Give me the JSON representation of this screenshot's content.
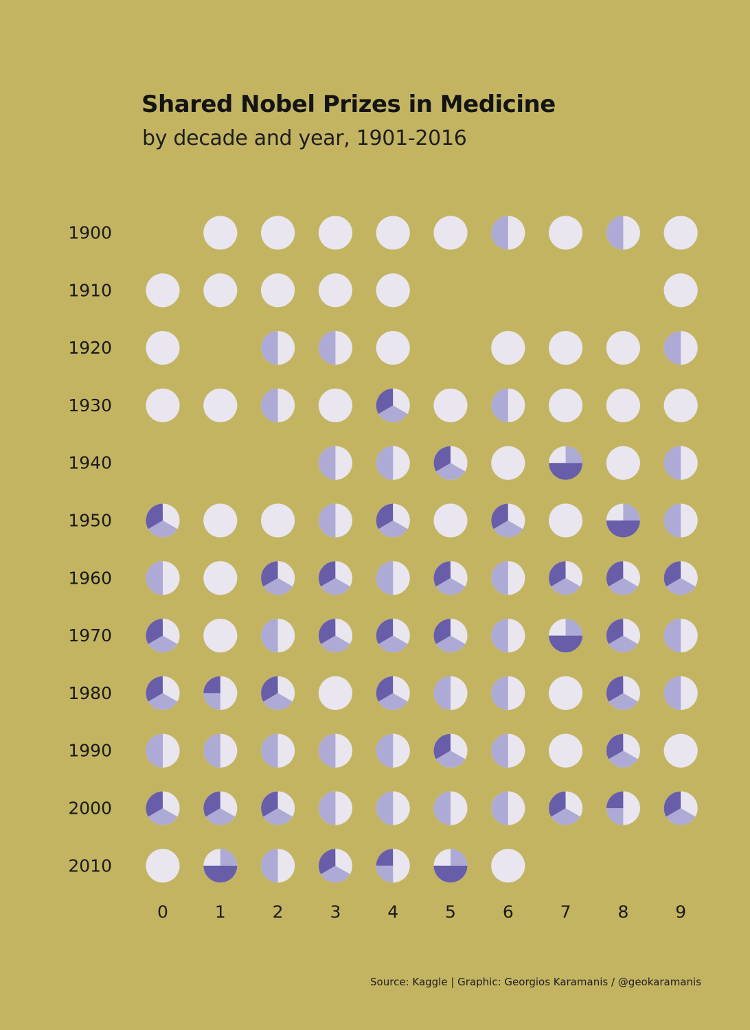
{
  "colors": {
    "background": "#C3B462",
    "one_laureate": "#E9E6EF",
    "two_laureates": "#AEAAD6",
    "three_or_more": "#675DA9"
  },
  "header": {
    "title": "Shared Nobel Prizes in Medicine",
    "subtitle": "by decade and year, 1901-2016"
  },
  "caption": "Source: Kaggle | Graphic: Georgios Karamanis / @geokaramanis",
  "chart_data": {
    "type": "pie",
    "title": "Shared Nobel Prizes in Medicine",
    "subtitle": "by decade and year, 1901-2016",
    "xlabel": "",
    "ylabel": "",
    "grid": false,
    "legend": false,
    "categories": [
      "0",
      "1",
      "2",
      "3",
      "4",
      "5",
      "6",
      "7",
      "8",
      "9"
    ],
    "decades": [
      "1900",
      "1910",
      "1920",
      "1930",
      "1940",
      "1950",
      "1960",
      "1970",
      "1980",
      "1990",
      "2000",
      "2010"
    ],
    "slice_order": [
      "one_laureate",
      "two_laureates",
      "three_or_more"
    ],
    "years": [
      {
        "decade": "1900",
        "digit": 1,
        "shares": [
          1
        ]
      },
      {
        "decade": "1900",
        "digit": 2,
        "shares": [
          1
        ]
      },
      {
        "decade": "1900",
        "digit": 3,
        "shares": [
          1
        ]
      },
      {
        "decade": "1900",
        "digit": 4,
        "shares": [
          1
        ]
      },
      {
        "decade": "1900",
        "digit": 5,
        "shares": [
          1
        ]
      },
      {
        "decade": "1900",
        "digit": 6,
        "shares": [
          0.5,
          0.5
        ]
      },
      {
        "decade": "1900",
        "digit": 7,
        "shares": [
          1
        ]
      },
      {
        "decade": "1900",
        "digit": 8,
        "shares": [
          0.5,
          0.5
        ]
      },
      {
        "decade": "1900",
        "digit": 9,
        "shares": [
          1
        ]
      },
      {
        "decade": "1910",
        "digit": 0,
        "shares": [
          1
        ]
      },
      {
        "decade": "1910",
        "digit": 1,
        "shares": [
          1
        ]
      },
      {
        "decade": "1910",
        "digit": 2,
        "shares": [
          1
        ]
      },
      {
        "decade": "1910",
        "digit": 3,
        "shares": [
          1
        ]
      },
      {
        "decade": "1910",
        "digit": 4,
        "shares": [
          1
        ]
      },
      {
        "decade": "1910",
        "digit": 9,
        "shares": [
          1
        ]
      },
      {
        "decade": "1920",
        "digit": 0,
        "shares": [
          1
        ]
      },
      {
        "decade": "1920",
        "digit": 2,
        "shares": [
          0.5,
          0.5
        ]
      },
      {
        "decade": "1920",
        "digit": 3,
        "shares": [
          0.5,
          0.5
        ]
      },
      {
        "decade": "1920",
        "digit": 4,
        "shares": [
          1
        ]
      },
      {
        "decade": "1920",
        "digit": 6,
        "shares": [
          1
        ]
      },
      {
        "decade": "1920",
        "digit": 7,
        "shares": [
          1
        ]
      },
      {
        "decade": "1920",
        "digit": 8,
        "shares": [
          1
        ]
      },
      {
        "decade": "1920",
        "digit": 9,
        "shares": [
          0.5,
          0.5
        ]
      },
      {
        "decade": "1930",
        "digit": 0,
        "shares": [
          1
        ]
      },
      {
        "decade": "1930",
        "digit": 1,
        "shares": [
          1
        ]
      },
      {
        "decade": "1930",
        "digit": 2,
        "shares": [
          0.5,
          0.5
        ]
      },
      {
        "decade": "1930",
        "digit": 3,
        "shares": [
          1
        ]
      },
      {
        "decade": "1930",
        "digit": 4,
        "shares": [
          0.333,
          0.333,
          0.333
        ]
      },
      {
        "decade": "1930",
        "digit": 5,
        "shares": [
          1
        ]
      },
      {
        "decade": "1930",
        "digit": 6,
        "shares": [
          0.5,
          0.5
        ]
      },
      {
        "decade": "1930",
        "digit": 7,
        "shares": [
          1
        ]
      },
      {
        "decade": "1930",
        "digit": 8,
        "shares": [
          1
        ]
      },
      {
        "decade": "1930",
        "digit": 9,
        "shares": [
          1
        ]
      },
      {
        "decade": "1940",
        "digit": 3,
        "shares": [
          0.5,
          0.5
        ]
      },
      {
        "decade": "1940",
        "digit": 4,
        "shares": [
          0.5,
          0.5
        ]
      },
      {
        "decade": "1940",
        "digit": 5,
        "shares": [
          0.333,
          0.333,
          0.333
        ]
      },
      {
        "decade": "1940",
        "digit": 6,
        "shares": [
          1
        ]
      },
      {
        "decade": "1940",
        "digit": 7,
        "shares": [
          0,
          0.25,
          0.5
        ]
      },
      {
        "decade": "1940",
        "digit": 8,
        "shares": [
          1
        ]
      },
      {
        "decade": "1940",
        "digit": 9,
        "shares": [
          0.5,
          0.5
        ]
      },
      {
        "decade": "1950",
        "digit": 0,
        "shares": [
          0.333,
          0.333,
          0.333
        ]
      },
      {
        "decade": "1950",
        "digit": 1,
        "shares": [
          1
        ]
      },
      {
        "decade": "1950",
        "digit": 2,
        "shares": [
          1
        ]
      },
      {
        "decade": "1950",
        "digit": 3,
        "shares": [
          0.5,
          0.5
        ]
      },
      {
        "decade": "1950",
        "digit": 4,
        "shares": [
          0.333,
          0.333,
          0.333
        ]
      },
      {
        "decade": "1950",
        "digit": 5,
        "shares": [
          1
        ]
      },
      {
        "decade": "1950",
        "digit": 6,
        "shares": [
          0.333,
          0.333,
          0.333
        ]
      },
      {
        "decade": "1950",
        "digit": 7,
        "shares": [
          1
        ]
      },
      {
        "decade": "1950",
        "digit": 8,
        "shares": [
          0,
          0.25,
          0.5
        ]
      },
      {
        "decade": "1950",
        "digit": 9,
        "shares": [
          0.5,
          0.5
        ]
      },
      {
        "decade": "1960",
        "digit": 0,
        "shares": [
          0.5,
          0.5
        ]
      },
      {
        "decade": "1960",
        "digit": 1,
        "shares": [
          1
        ]
      },
      {
        "decade": "1960",
        "digit": 2,
        "shares": [
          0.333,
          0.333,
          0.333
        ]
      },
      {
        "decade": "1960",
        "digit": 3,
        "shares": [
          0.333,
          0.333,
          0.333
        ]
      },
      {
        "decade": "1960",
        "digit": 4,
        "shares": [
          0.5,
          0.5
        ]
      },
      {
        "decade": "1960",
        "digit": 5,
        "shares": [
          0.333,
          0.333,
          0.333
        ]
      },
      {
        "decade": "1960",
        "digit": 6,
        "shares": [
          0.5,
          0.5
        ]
      },
      {
        "decade": "1960",
        "digit": 7,
        "shares": [
          0.333,
          0.333,
          0.333
        ]
      },
      {
        "decade": "1960",
        "digit": 8,
        "shares": [
          0.333,
          0.333,
          0.333
        ]
      },
      {
        "decade": "1960",
        "digit": 9,
        "shares": [
          0.333,
          0.333,
          0.333
        ]
      },
      {
        "decade": "1970",
        "digit": 0,
        "shares": [
          0.333,
          0.333,
          0.333
        ]
      },
      {
        "decade": "1970",
        "digit": 1,
        "shares": [
          1
        ]
      },
      {
        "decade": "1970",
        "digit": 2,
        "shares": [
          0.5,
          0.5
        ]
      },
      {
        "decade": "1970",
        "digit": 3,
        "shares": [
          0.333,
          0.333,
          0.333
        ]
      },
      {
        "decade": "1970",
        "digit": 4,
        "shares": [
          0.333,
          0.333,
          0.333
        ]
      },
      {
        "decade": "1970",
        "digit": 5,
        "shares": [
          0.333,
          0.333,
          0.333
        ]
      },
      {
        "decade": "1970",
        "digit": 6,
        "shares": [
          0.5,
          0.5
        ]
      },
      {
        "decade": "1970",
        "digit": 7,
        "shares": [
          0,
          0.25,
          0.5
        ]
      },
      {
        "decade": "1970",
        "digit": 8,
        "shares": [
          0.333,
          0.333,
          0.333
        ]
      },
      {
        "decade": "1970",
        "digit": 9,
        "shares": [
          0.5,
          0.5
        ]
      },
      {
        "decade": "1980",
        "digit": 0,
        "shares": [
          0.333,
          0.333,
          0.333
        ]
      },
      {
        "decade": "1980",
        "digit": 1,
        "shares": [
          0.5,
          0.25,
          0.25
        ]
      },
      {
        "decade": "1980",
        "digit": 2,
        "shares": [
          0.333,
          0.333,
          0.333
        ]
      },
      {
        "decade": "1980",
        "digit": 3,
        "shares": [
          1
        ]
      },
      {
        "decade": "1980",
        "digit": 4,
        "shares": [
          0.333,
          0.333,
          0.333
        ]
      },
      {
        "decade": "1980",
        "digit": 5,
        "shares": [
          0.5,
          0.5
        ]
      },
      {
        "decade": "1980",
        "digit": 6,
        "shares": [
          0.5,
          0.5
        ]
      },
      {
        "decade": "1980",
        "digit": 7,
        "shares": [
          1
        ]
      },
      {
        "decade": "1980",
        "digit": 8,
        "shares": [
          0.333,
          0.333,
          0.333
        ]
      },
      {
        "decade": "1980",
        "digit": 9,
        "shares": [
          0.5,
          0.5
        ]
      },
      {
        "decade": "1990",
        "digit": 0,
        "shares": [
          0.5,
          0.5
        ]
      },
      {
        "decade": "1990",
        "digit": 1,
        "shares": [
          0.5,
          0.5
        ]
      },
      {
        "decade": "1990",
        "digit": 2,
        "shares": [
          0.5,
          0.5
        ]
      },
      {
        "decade": "1990",
        "digit": 3,
        "shares": [
          0.5,
          0.5
        ]
      },
      {
        "decade": "1990",
        "digit": 4,
        "shares": [
          0.5,
          0.5
        ]
      },
      {
        "decade": "1990",
        "digit": 5,
        "shares": [
          0.333,
          0.333,
          0.333
        ]
      },
      {
        "decade": "1990",
        "digit": 6,
        "shares": [
          0.5,
          0.5
        ]
      },
      {
        "decade": "1990",
        "digit": 7,
        "shares": [
          1
        ]
      },
      {
        "decade": "1990",
        "digit": 8,
        "shares": [
          0.333,
          0.333,
          0.333
        ]
      },
      {
        "decade": "1990",
        "digit": 9,
        "shares": [
          1
        ]
      },
      {
        "decade": "2000",
        "digit": 0,
        "shares": [
          0.333,
          0.333,
          0.333
        ]
      },
      {
        "decade": "2000",
        "digit": 1,
        "shares": [
          0.333,
          0.333,
          0.333
        ]
      },
      {
        "decade": "2000",
        "digit": 2,
        "shares": [
          0.333,
          0.333,
          0.333
        ]
      },
      {
        "decade": "2000",
        "digit": 3,
        "shares": [
          0.5,
          0.5
        ]
      },
      {
        "decade": "2000",
        "digit": 4,
        "shares": [
          0.5,
          0.5
        ]
      },
      {
        "decade": "2000",
        "digit": 5,
        "shares": [
          0.5,
          0.5
        ]
      },
      {
        "decade": "2000",
        "digit": 6,
        "shares": [
          0.5,
          0.5
        ]
      },
      {
        "decade": "2000",
        "digit": 7,
        "shares": [
          0.333,
          0.333,
          0.333
        ]
      },
      {
        "decade": "2000",
        "digit": 8,
        "shares": [
          0.5,
          0.25,
          0.25
        ]
      },
      {
        "decade": "2000",
        "digit": 9,
        "shares": [
          0.333,
          0.333,
          0.333
        ]
      },
      {
        "decade": "2010",
        "digit": 0,
        "shares": [
          1
        ]
      },
      {
        "decade": "2010",
        "digit": 1,
        "shares": [
          0,
          0.25,
          0.5
        ]
      },
      {
        "decade": "2010",
        "digit": 2,
        "shares": [
          0.5,
          0.5
        ]
      },
      {
        "decade": "2010",
        "digit": 3,
        "shares": [
          0.333,
          0.333,
          0.333
        ]
      },
      {
        "decade": "2010",
        "digit": 4,
        "shares": [
          0.5,
          0.25,
          0.25
        ]
      },
      {
        "decade": "2010",
        "digit": 5,
        "shares": [
          0,
          0.25,
          0.5
        ]
      },
      {
        "decade": "2010",
        "digit": 6,
        "shares": [
          1
        ]
      }
    ]
  }
}
